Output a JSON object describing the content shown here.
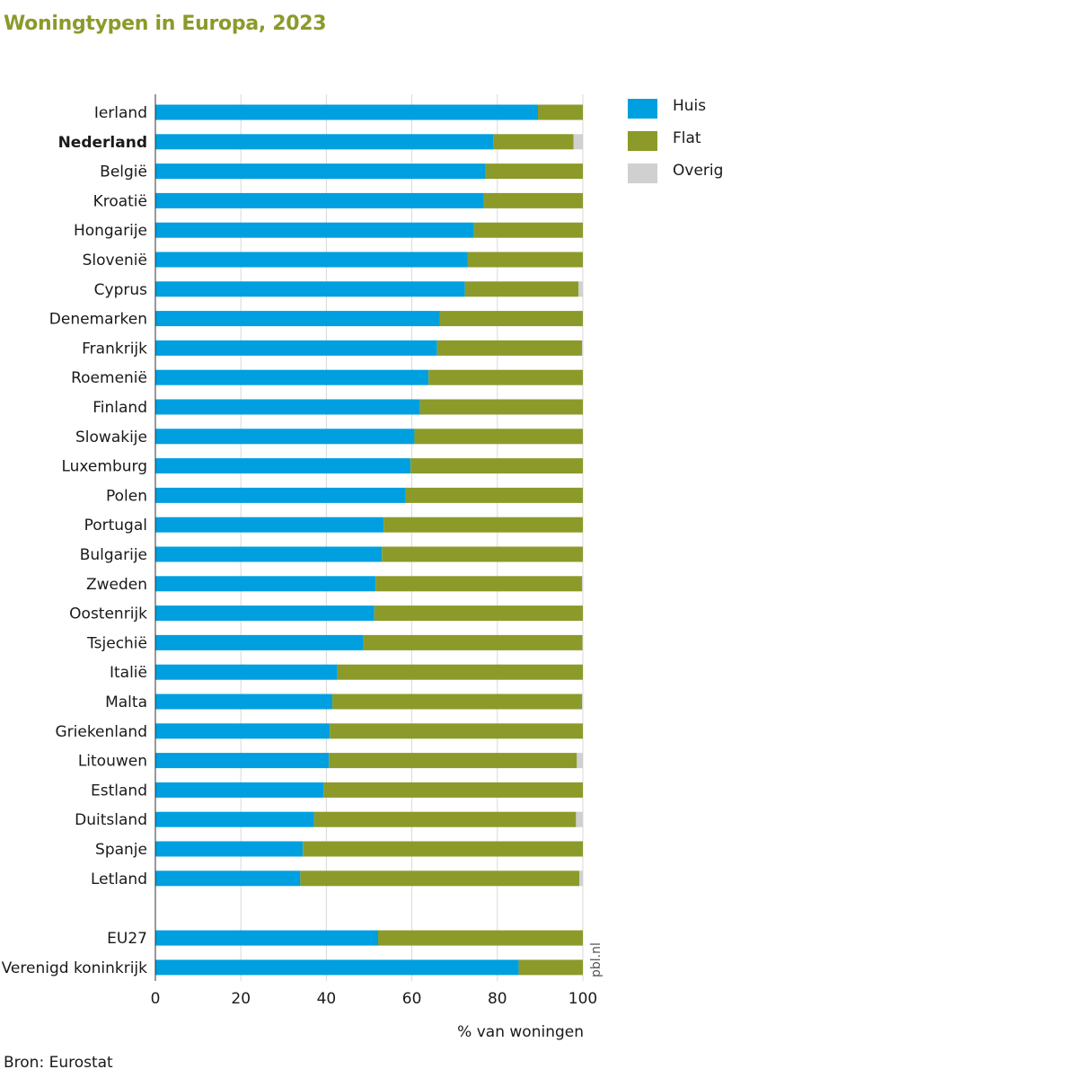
{
  "title": "Woningtypen in Europa, 2023",
  "source": "Bron: Eurostat",
  "watermark": "pbl.nl",
  "colors": {
    "huis": "#009fdf",
    "flat": "#8c9a2a",
    "overig": "#d0d0d0",
    "grid": "#d9d9d9",
    "title": "#8c9a2a"
  },
  "legend": [
    {
      "label": "Huis",
      "color": "#009fdf"
    },
    {
      "label": "Flat",
      "color": "#8c9a2a"
    },
    {
      "label": "Overig",
      "color": "#d0d0d0"
    }
  ],
  "chart_data": {
    "type": "bar",
    "orientation": "horizontal",
    "stacked": true,
    "categories": [
      "Ierland",
      "Nederland",
      "België",
      "Kroatië",
      "Hongarije",
      "Slovenië",
      "Cyprus",
      "Denemarken",
      "Frankrijk",
      "Roemenië",
      "Finland",
      "Slowakije",
      "Luxemburg",
      "Polen",
      "Portugal",
      "Bulgarije",
      "Zweden",
      "Oostenrijk",
      "Tsjechië",
      "Italië",
      "Malta",
      "Griekenland",
      "Litouwen",
      "Estland",
      "Duitsland",
      "Spanje",
      "Letland",
      "EU27",
      "Verenigd koninkrijk"
    ],
    "highlight": "Nederland",
    "group_break_before": "EU27",
    "series": [
      {
        "name": "Huis",
        "values": [
          89.5,
          79.0,
          77.1,
          76.8,
          74.5,
          73.0,
          72.4,
          66.5,
          65.9,
          63.9,
          61.9,
          60.6,
          59.7,
          58.4,
          53.4,
          53.0,
          51.5,
          51.2,
          48.7,
          42.6,
          41.4,
          40.8,
          40.6,
          39.3,
          37.1,
          34.5,
          33.9,
          52.1,
          85.0
        ]
      },
      {
        "name": "Flat",
        "values": [
          10.5,
          18.8,
          22.9,
          23.2,
          25.5,
          27.0,
          26.6,
          33.5,
          33.9,
          36.1,
          38.1,
          39.4,
          40.3,
          41.6,
          46.6,
          47.0,
          48.3,
          48.8,
          51.2,
          57.4,
          58.4,
          59.2,
          58.0,
          60.7,
          61.3,
          65.5,
          65.3,
          47.9,
          15.0
        ]
      },
      {
        "name": "Overig",
        "values": [
          0,
          2.2,
          0,
          0,
          0,
          0,
          1.0,
          0,
          0.2,
          0,
          0,
          0,
          0,
          0,
          0,
          0,
          0.2,
          0,
          0.1,
          0,
          0.2,
          0,
          1.4,
          0,
          1.6,
          0,
          0.8,
          0,
          0
        ]
      }
    ],
    "xlabel": "% van woningen",
    "xlim": [
      0,
      100
    ],
    "xticks": [
      "0",
      "20",
      "40",
      "60",
      "80",
      "100"
    ],
    "grid": "vertical",
    "legend_position": "right"
  }
}
